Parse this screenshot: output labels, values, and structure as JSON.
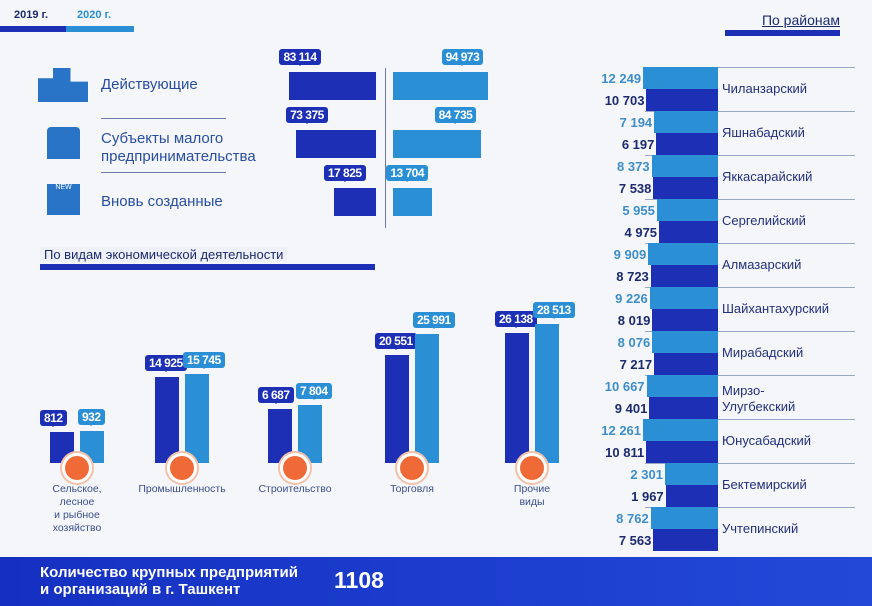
{
  "legend": {
    "y2019": "2019 г.",
    "y2020": "2020 г."
  },
  "colors": {
    "y2019": "#1c2fb5",
    "y2020": "#2a8fd4",
    "icon_accent": "#ef6a37"
  },
  "chart_data": [
    {
      "type": "bar",
      "orientation": "horizontal",
      "categories": [
        "Действующие",
        "Субъекты малого предпринимательства",
        "Вновь созданные"
      ],
      "series": [
        {
          "name": "2019 г.",
          "values": [
            83114,
            73375,
            17825
          ]
        },
        {
          "name": "2020 г.",
          "values": [
            94973,
            84735,
            13704
          ]
        }
      ]
    },
    {
      "type": "bar",
      "title": "По видам экономической деятельности",
      "categories": [
        "Сельское,\nлесное\nи рыбное\nхозяйство",
        "Промышленность",
        "Строительство",
        "Торговля",
        "Прочие\nвиды"
      ],
      "icons": [
        "tractor-icon",
        "factory-icon",
        "crane-icon",
        "cart-icon",
        "globe-icon"
      ],
      "series": [
        {
          "name": "2019 г.",
          "values": [
            812,
            14925,
            6687,
            20551,
            26138
          ]
        },
        {
          "name": "2020 г.",
          "values": [
            932,
            15745,
            7804,
            25991,
            28513
          ]
        }
      ]
    },
    {
      "type": "bar",
      "orientation": "horizontal",
      "title": "По районам",
      "categories": [
        "Чиланзарский",
        "Яшнабадский",
        "Яккасарайский",
        "Сергелийский",
        "Алмазарский",
        "Шайхантахурский",
        "Мирабадский",
        "Мирзо-\nУлугбекский",
        "Юнусабадский",
        "Бектемирский",
        "Учтепинский"
      ],
      "series": [
        {
          "name": "2020 г.",
          "values": [
            12249,
            7194,
            8373,
            5955,
            9909,
            9226,
            8076,
            10667,
            12261,
            2301,
            8762
          ]
        },
        {
          "name": "2019 г.",
          "values": [
            10703,
            6197,
            7538,
            4975,
            8723,
            8019,
            7217,
            9401,
            10811,
            1967,
            7563
          ]
        }
      ]
    }
  ],
  "format": {
    "numbers": [
      "83 114",
      "73 375",
      "17 825",
      "94 973",
      "84 735",
      "13 704"
    ]
  },
  "footer": {
    "label": "Количество крупных предприятий\nи организаций в г. Ташкент",
    "value": "1108"
  }
}
